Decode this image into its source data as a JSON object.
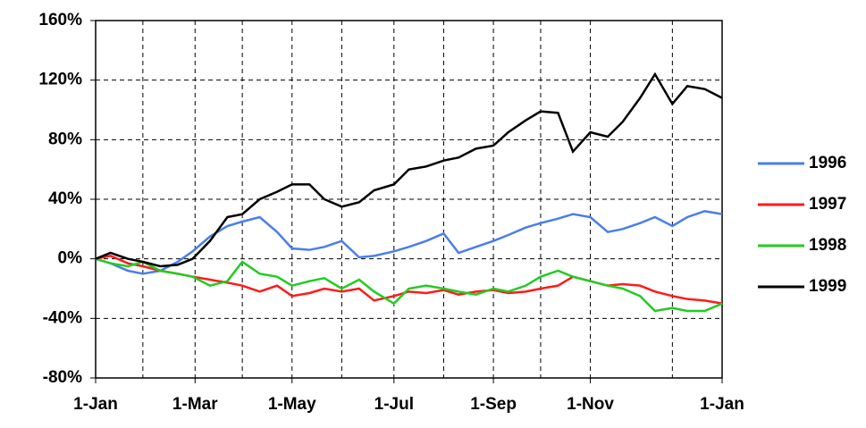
{
  "chart_data": {
    "type": "line",
    "x": [
      0,
      6,
      13,
      19,
      26,
      33,
      39,
      46,
      53,
      59,
      66,
      73,
      79,
      86,
      92,
      99,
      106,
      112,
      120,
      126,
      133,
      140,
      146,
      153,
      160,
      166,
      173,
      179,
      186,
      192,
      199,
      206,
      212,
      219,
      225,
      232,
      238,
      245,
      252
    ],
    "series": [
      {
        "name": "1996",
        "color": "#4a7eeb",
        "values": [
          0,
          -3,
          -8,
          -10,
          -8,
          -2,
          5,
          15,
          22,
          25,
          28,
          18,
          7,
          6,
          8,
          12,
          1,
          2,
          5,
          8,
          12,
          17,
          4,
          8,
          12,
          16,
          21,
          24,
          27,
          30,
          28,
          18,
          20,
          24,
          28,
          22,
          28,
          32,
          30
        ]
      },
      {
        "name": "1997",
        "color": "#ff1a1a",
        "values": [
          0,
          2,
          -3,
          -5,
          -8,
          -10,
          -12,
          -14,
          -16,
          -18,
          -22,
          -18,
          -25,
          -23,
          -20,
          -22,
          -20,
          -28,
          -25,
          -22,
          -23,
          -21,
          -24,
          -22,
          -21,
          -23,
          -22,
          -20,
          -18,
          -12,
          -15,
          -18,
          -17,
          -18,
          -22,
          -25,
          -27,
          -28,
          -30
        ]
      },
      {
        "name": "1998",
        "color": "#22cc22",
        "values": [
          0,
          -3,
          -5,
          -2,
          -8,
          -10,
          -12,
          -18,
          -15,
          -2,
          -10,
          -12,
          -18,
          -15,
          -13,
          -20,
          -14,
          -22,
          -30,
          -20,
          -18,
          -20,
          -22,
          -24,
          -20,
          -22,
          -18,
          -12,
          -8,
          -12,
          -15,
          -18,
          -20,
          -25,
          -35,
          -33,
          -35,
          -35,
          -30
        ]
      },
      {
        "name": "1999",
        "color": "#000000",
        "values": [
          0,
          4,
          0,
          -2,
          -5,
          -4,
          0,
          12,
          28,
          30,
          40,
          45,
          50,
          50,
          40,
          35,
          38,
          46,
          50,
          60,
          62,
          66,
          68,
          74,
          76,
          85,
          93,
          99,
          98,
          72,
          85,
          82,
          92,
          108,
          124,
          104,
          116,
          114,
          108
        ]
      }
    ],
    "xlim": [
      0,
      252
    ],
    "xticks": [
      {
        "value": 0,
        "label": "1-Jan"
      },
      {
        "value": 40,
        "label": "1-Mar"
      },
      {
        "value": 79,
        "label": "1-May"
      },
      {
        "value": 120,
        "label": "1-Jul"
      },
      {
        "value": 160,
        "label": "1-Sep"
      },
      {
        "value": 199,
        "label": "1-Nov"
      },
      {
        "value": 252,
        "label": "1-Jan"
      }
    ],
    "xminor": [
      19,
      59,
      99,
      140,
      179,
      232
    ],
    "ylim": [
      -80,
      160
    ],
    "yticks": [
      {
        "value": -80,
        "label": "-80%"
      },
      {
        "value": -40,
        "label": "-40%"
      },
      {
        "value": 0,
        "label": "0%"
      },
      {
        "value": 40,
        "label": "40%"
      },
      {
        "value": 80,
        "label": "80%"
      },
      {
        "value": 120,
        "label": "120%"
      },
      {
        "value": 160,
        "label": "160%"
      }
    ],
    "grid": true,
    "legend": "right"
  }
}
